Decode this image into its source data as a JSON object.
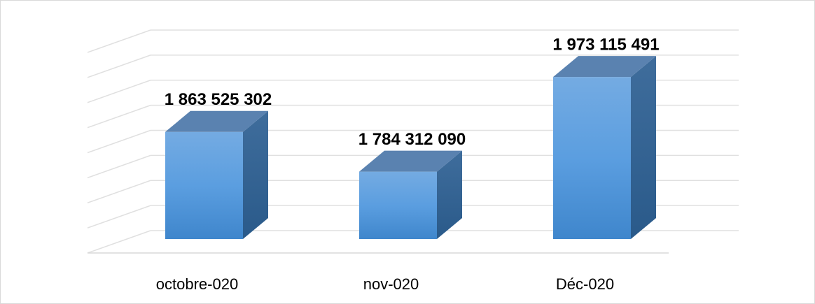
{
  "chart_data": {
    "type": "bar3d",
    "categories": [
      "octobre-020",
      "nov-020",
      "Déc-020"
    ],
    "values": [
      1863525302,
      1784312090,
      1973115491
    ],
    "value_labels": [
      "1 863 525 302",
      "1 784 312 090",
      "1 973 115 491"
    ],
    "color": "#5b9bd5",
    "ylim": [
      1650000000,
      2050000000
    ],
    "yticks": [
      1650000000,
      1700000000,
      1750000000,
      1800000000,
      1850000000,
      1900000000,
      1950000000,
      2000000000,
      2050000000
    ],
    "grid": true
  }
}
